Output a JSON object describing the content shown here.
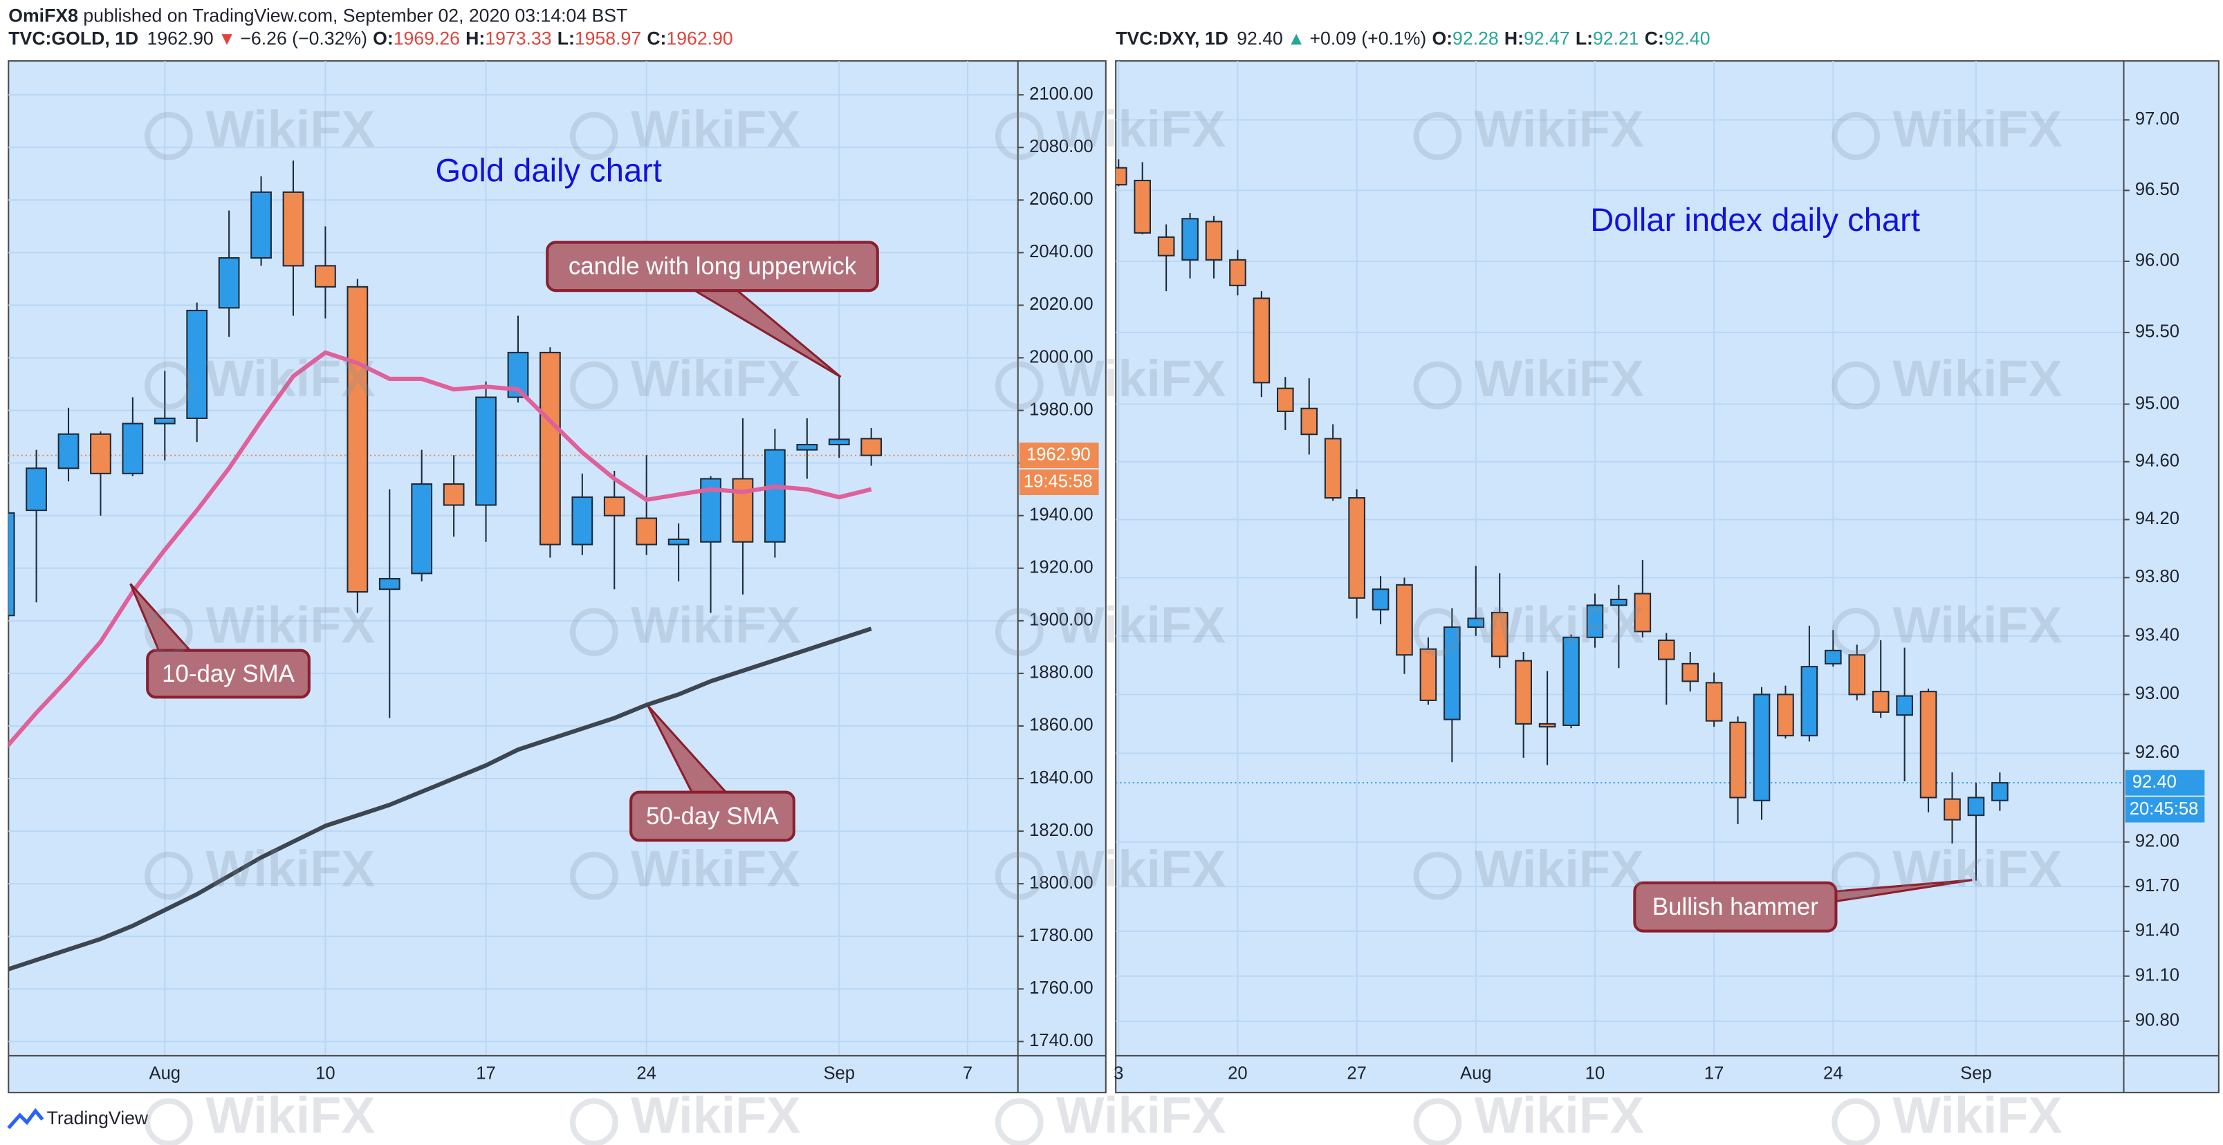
{
  "header": {
    "author": "OmiFX8",
    "published": "published on TradingView.com, September 02, 2020 03:14:04 BST"
  },
  "watermark": "WikiFX",
  "footer": {
    "brand": "TradingView"
  },
  "chart_data": [
    {
      "type": "candlestick",
      "legend": {
        "symbol": "TVC:GOLD, 1D",
        "last": "1962.90",
        "arrow": "▼",
        "change": "−6.26 (−0.32%)",
        "color": "#e0443b",
        "ohlc": [
          {
            "key": "O:",
            "value": "1969.26"
          },
          {
            "key": "H:",
            "value": "1973.33"
          },
          {
            "key": "L:",
            "value": "1958.97"
          },
          {
            "key": "C:",
            "value": "1962.90"
          }
        ]
      },
      "title": "Gold daily chart",
      "title_color": "#1212dd",
      "categories": [
        null,
        null,
        null,
        null,
        null,
        "Aug",
        null,
        null,
        null,
        null,
        "10",
        null,
        null,
        null,
        null,
        "17",
        null,
        null,
        null,
        null,
        "24",
        null,
        null,
        null,
        null,
        null,
        "Sep",
        null,
        null,
        null,
        "7"
      ],
      "open": [
        1902,
        1942,
        1958,
        1971,
        1956,
        1975,
        1977,
        2019,
        2038,
        2063,
        2035,
        2027,
        1912,
        1918,
        1952,
        1944,
        1985,
        2002,
        1929,
        1947,
        1939,
        1929,
        1930,
        1954,
        1930,
        1965,
        1967,
        1969.26,
        null,
        null,
        null
      ],
      "high": [
        1944,
        1965,
        1981,
        1972,
        1985,
        1995,
        2021,
        2056,
        2069,
        2075,
        2050,
        2030,
        1950,
        1965,
        1963,
        1991,
        2016,
        2004,
        1956,
        1957,
        1963,
        1937,
        1955,
        1977,
        1973,
        1977,
        1993,
        1973.33,
        null,
        null,
        null
      ],
      "low": [
        1898,
        1907,
        1953,
        1940,
        1955,
        1961,
        1968,
        2008,
        2035,
        2016,
        2015,
        1903,
        1863,
        1915,
        1932,
        1930,
        1983,
        1924,
        1925,
        1912,
        1925,
        1915,
        1903,
        1910,
        1924,
        1954,
        1962,
        1958.97,
        null,
        null,
        null
      ],
      "close": [
        1941,
        1958,
        1971,
        1956,
        1975,
        1977,
        2018,
        2038,
        2063,
        2035,
        2027,
        1911,
        1916,
        1952,
        1944,
        1985,
        2002,
        1929,
        1947,
        1940,
        1929,
        1931,
        1954,
        1930,
        1965,
        1967,
        1969,
        1962.9,
        null,
        null,
        null
      ],
      "lines": [
        {
          "color": "#e0609a",
          "values": [
            1851,
            1865,
            1878,
            1892,
            1911,
            1927,
            1942,
            1958,
            1976,
            1993,
            2002,
            1998,
            1992,
            1992,
            1988,
            1989,
            1988,
            1976,
            1964,
            1954,
            1946,
            1948,
            1950,
            1949,
            1951,
            1950,
            1947,
            1950,
            null,
            null,
            null
          ]
        },
        {
          "color": "#3d4550",
          "values": [
            1767,
            1771,
            1775,
            1779,
            1784,
            1790,
            1796,
            1803,
            1810,
            1816,
            1822,
            1826,
            1830,
            1835,
            1840,
            1845,
            1851,
            1855,
            1859,
            1863,
            1868,
            1872,
            1877,
            1881,
            1885,
            1889,
            1893,
            1897,
            null,
            null,
            null
          ]
        }
      ],
      "up_color": "#2e9be8",
      "down_color": "#f08a50",
      "border_color": "#1d2a38",
      "ylim": [
        1734.6,
        2112.9
      ],
      "log": false,
      "grid": true,
      "yticks": [
        {
          "value": 1740,
          "label": "1740.00"
        },
        {
          "value": 1760,
          "label": "1760.00"
        },
        {
          "value": 1780,
          "label": "1780.00"
        },
        {
          "value": 1800,
          "label": "1800.00"
        },
        {
          "value": 1820,
          "label": "1820.00"
        },
        {
          "value": 1840,
          "label": "1840.00"
        },
        {
          "value": 1860,
          "label": "1860.00"
        },
        {
          "value": 1880,
          "label": "1880.00"
        },
        {
          "value": 1900,
          "label": "1900.00"
        },
        {
          "value": 1920,
          "label": "1920.00"
        },
        {
          "value": 1940,
          "label": "1940.00"
        },
        {
          "value": 1960,
          "label": "1960.00"
        },
        {
          "value": 1980,
          "label": "1980.00"
        },
        {
          "value": 2000,
          "label": "2000.00"
        },
        {
          "value": 2020,
          "label": "2020.00"
        },
        {
          "value": 2040,
          "label": "2040.00"
        },
        {
          "value": 2060,
          "label": "2060.00"
        },
        {
          "value": 2080,
          "label": "2080.00"
        },
        {
          "value": 2100,
          "label": "2100.00"
        }
      ],
      "last_price": {
        "value": 1962.9,
        "label": "1962.90"
      },
      "countdown": "19:45:58",
      "marker_color": "#f08a50",
      "annotations": [
        {
          "text": "candle with long upperwick"
        },
        {
          "text": "10-day SMA"
        },
        {
          "text": "50-day SMA"
        }
      ]
    },
    {
      "type": "candlestick",
      "legend": {
        "symbol": "TVC:DXY, 1D",
        "last": "92.40",
        "arrow": "▲",
        "change": "+0.09 (+0.1%)",
        "color": "#26a69a",
        "ohlc": [
          {
            "key": "O:",
            "value": "92.28"
          },
          {
            "key": "H:",
            "value": "92.47"
          },
          {
            "key": "L:",
            "value": "92.21"
          },
          {
            "key": "C:",
            "value": "92.40"
          }
        ]
      },
      "title": "Dollar index daily chart",
      "title_color": "#1212dd",
      "categories": [
        "3",
        null,
        null,
        null,
        null,
        "20",
        null,
        null,
        null,
        null,
        "27",
        null,
        null,
        null,
        null,
        "Aug",
        null,
        null,
        null,
        null,
        "10",
        null,
        null,
        null,
        null,
        "17",
        null,
        null,
        null,
        null,
        "24",
        null,
        null,
        null,
        null,
        null,
        "Sep",
        null
      ],
      "open": [
        96.66,
        96.57,
        96.17,
        96.01,
        96.28,
        96.01,
        95.74,
        95.11,
        94.97,
        94.76,
        94.35,
        93.58,
        93.75,
        93.31,
        92.83,
        93.46,
        93.56,
        93.23,
        92.8,
        92.79,
        93.39,
        93.61,
        93.69,
        93.37,
        93.21,
        93.08,
        92.81,
        92.28,
        93.0,
        92.72,
        93.21,
        93.27,
        93.02,
        92.86,
        93.02,
        92.29,
        92.18,
        92.28
      ],
      "high": [
        96.72,
        96.7,
        96.26,
        96.34,
        96.32,
        96.08,
        95.79,
        95.19,
        95.18,
        94.86,
        94.41,
        93.81,
        93.8,
        93.39,
        93.59,
        93.88,
        93.83,
        93.29,
        93.16,
        93.41,
        93.69,
        93.75,
        93.92,
        93.42,
        93.29,
        93.15,
        92.85,
        93.05,
        93.06,
        93.47,
        93.44,
        93.34,
        93.37,
        93.32,
        93.04,
        92.47,
        92.4,
        92.47
      ],
      "low": [
        96.53,
        96.19,
        95.79,
        95.88,
        95.88,
        95.76,
        95.05,
        94.82,
        94.65,
        94.33,
        93.52,
        93.48,
        93.14,
        92.93,
        92.54,
        93.4,
        93.18,
        92.57,
        92.52,
        92.77,
        93.32,
        93.18,
        93.39,
        92.93,
        93.02,
        92.78,
        92.12,
        92.15,
        92.7,
        92.68,
        93.19,
        92.96,
        92.84,
        92.41,
        92.2,
        91.99,
        91.74,
        92.21
      ],
      "close": [
        96.54,
        96.2,
        96.04,
        96.3,
        96.01,
        95.83,
        95.15,
        94.95,
        94.79,
        94.35,
        93.66,
        93.72,
        93.27,
        92.96,
        93.46,
        93.52,
        93.26,
        92.8,
        92.78,
        93.39,
        93.61,
        93.65,
        93.43,
        93.24,
        93.09,
        92.82,
        92.3,
        93.0,
        92.72,
        93.19,
        93.3,
        93.0,
        92.88,
        92.99,
        92.3,
        92.15,
        92.3,
        92.4
      ],
      "up_color": "#2e9be8",
      "down_color": "#f08a50",
      "border_color": "#1d2a38",
      "ylim": [
        90.57,
        97.42
      ],
      "log": true,
      "grid": true,
      "yticks": [
        {
          "value": 90.8,
          "label": "90.80"
        },
        {
          "value": 91.1,
          "label": "91.10"
        },
        {
          "value": 91.4,
          "label": "91.40"
        },
        {
          "value": 91.7,
          "label": "91.70"
        },
        {
          "value": 92,
          "label": "92.00"
        },
        {
          "value": 92.6,
          "label": "92.60"
        },
        {
          "value": 93,
          "label": "93.00"
        },
        {
          "value": 93.4,
          "label": "93.40"
        },
        {
          "value": 93.8,
          "label": "93.80"
        },
        {
          "value": 94.2,
          "label": "94.20"
        },
        {
          "value": 94.6,
          "label": "94.60"
        },
        {
          "value": 95,
          "label": "95.00"
        },
        {
          "value": 95.5,
          "label": "95.50"
        },
        {
          "value": 96,
          "label": "96.00"
        },
        {
          "value": 96.5,
          "label": "96.50"
        },
        {
          "value": 97,
          "label": "97.00"
        }
      ],
      "last_price": {
        "value": 92.4,
        "label": "92.40"
      },
      "countdown": "20:45:58",
      "marker_color": "#2e9be8",
      "annotations": [
        {
          "text": "Bullish hammer"
        }
      ]
    }
  ]
}
